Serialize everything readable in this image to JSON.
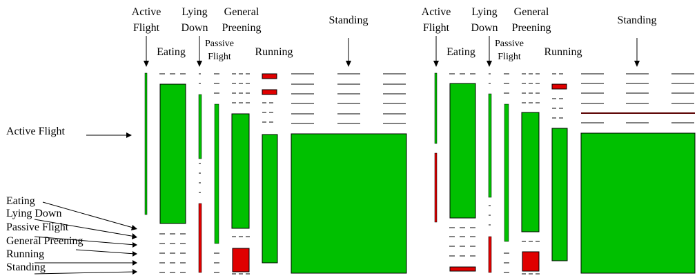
{
  "colors": {
    "green": "#00c000",
    "red": "#e00000",
    "dark_red": "#5a0000",
    "outline": "#000000",
    "text": "#000000"
  },
  "panels": [
    {
      "id": "left",
      "column_labels": [
        {
          "key": "active-flight",
          "lines": [
            "Active",
            "Flight"
          ]
        },
        {
          "key": "eating",
          "lines": [
            "Eating"
          ]
        },
        {
          "key": "lying-down",
          "lines": [
            "Lying",
            "Down"
          ]
        },
        {
          "key": "passive-flight",
          "lines": [
            "Passive",
            "Flight"
          ]
        },
        {
          "key": "general-preening",
          "lines": [
            "General",
            "Preening"
          ]
        },
        {
          "key": "running",
          "lines": [
            "Running"
          ]
        },
        {
          "key": "standing",
          "lines": [
            "Standing"
          ]
        }
      ]
    },
    {
      "id": "right",
      "column_labels": [
        {
          "key": "active-flight",
          "lines": [
            "Active",
            "Flight"
          ]
        },
        {
          "key": "eating",
          "lines": [
            "Eating"
          ]
        },
        {
          "key": "lying-down",
          "lines": [
            "Lying",
            "Down"
          ]
        },
        {
          "key": "passive-flight",
          "lines": [
            "Passive",
            "Flight"
          ]
        },
        {
          "key": "general-preening",
          "lines": [
            "General",
            "Preening"
          ]
        },
        {
          "key": "running",
          "lines": [
            "Running"
          ]
        },
        {
          "key": "standing",
          "lines": [
            "Standing"
          ]
        }
      ]
    }
  ],
  "row_labels": [
    {
      "key": "active-flight",
      "text": "Active Flight"
    },
    {
      "key": "eating",
      "text": "Eating"
    },
    {
      "key": "lying-down",
      "text": "Lying Down"
    },
    {
      "key": "passive-flight",
      "text": "Passive Flight"
    },
    {
      "key": "general-preening",
      "text": "General Preening"
    },
    {
      "key": "running",
      "text": "Running"
    },
    {
      "key": "standing",
      "text": "Standing"
    }
  ]
}
